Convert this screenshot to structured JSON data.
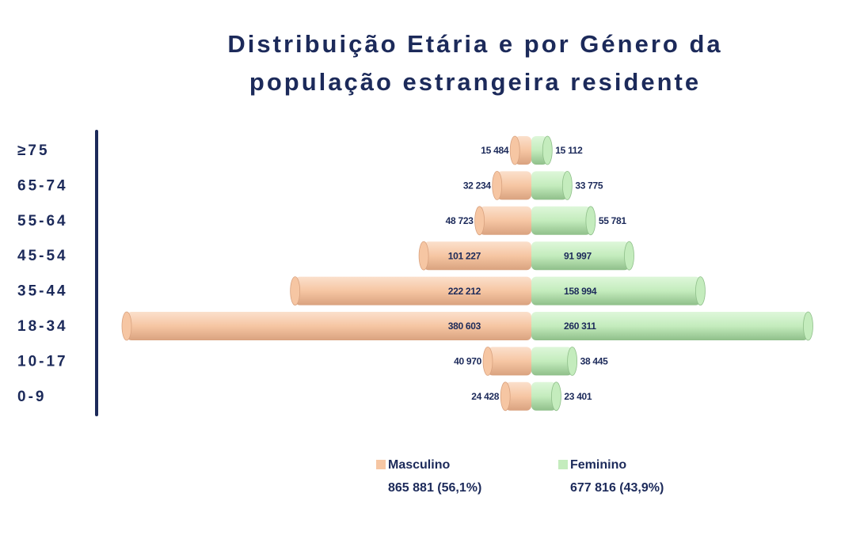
{
  "chart_data": {
    "type": "pyramid",
    "title": [
      "Distribuição Etária e por Género da",
      "população estrangeira residente"
    ],
    "categories": [
      "≥75",
      "65-74",
      "55-64",
      "45-54",
      "35-44",
      "18-34",
      "10-17",
      "0-9"
    ],
    "series": [
      {
        "name": "Masculino",
        "color": "#f6c6a3",
        "side": "left",
        "legend_note": "865 881 (56,1%)",
        "values": [
          15484,
          32234,
          48723,
          101227,
          222212,
          380603,
          40970,
          24428
        ],
        "value_labels": [
          "15 484",
          "32 234",
          "48 723",
          "101 227",
          "222 212",
          "380 603",
          "40 970",
          "24 428"
        ]
      },
      {
        "name": "Feminino",
        "color": "#c4ecbd",
        "side": "right",
        "legend_note": "677 816 (43,9%)",
        "values": [
          15112,
          33775,
          55781,
          91997,
          158994,
          260311,
          38445,
          23401
        ],
        "value_labels": [
          "15 112",
          "33 775",
          "55 781",
          "91 997",
          "158 994",
          "260 311",
          "38 445",
          "23 401"
        ]
      }
    ]
  }
}
